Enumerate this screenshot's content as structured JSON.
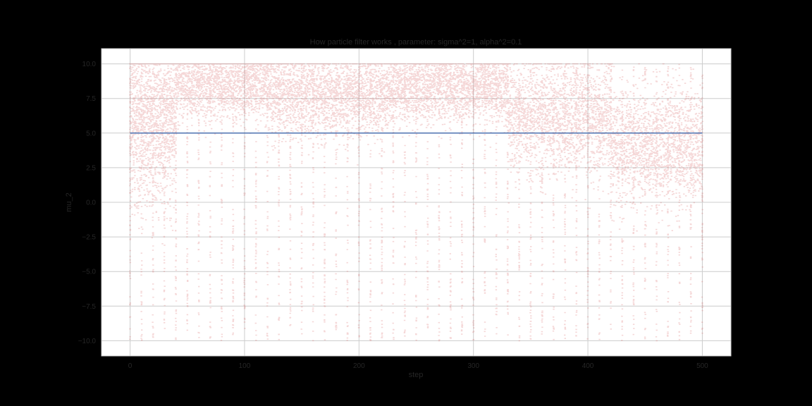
{
  "chart_data": {
    "type": "scatter",
    "title": "How particle filter works , parameter: sigma^2=1, alpha^2=0.1",
    "xlabel": "step",
    "ylabel": "mu_2",
    "xlim": [
      -25,
      525
    ],
    "ylim": [
      -11.1,
      11.1
    ],
    "x_ticks": [
      0,
      100,
      200,
      300,
      400,
      500
    ],
    "y_ticks": [
      -10.0,
      -7.5,
      -5.0,
      -2.5,
      0.0,
      2.5,
      5.0,
      7.5,
      10.0
    ],
    "x_tick_labels": [
      "0",
      "100",
      "200",
      "300",
      "400",
      "500"
    ],
    "y_tick_labels": [
      "−10.0",
      "−7.5",
      "−5.0",
      "−2.5",
      "0.0",
      "2.5",
      "5.0",
      "7.5",
      "10.0"
    ],
    "grid": true,
    "colors": {
      "background": "#000000",
      "plot_area": "#ffffff",
      "grid": "#cccccc",
      "particles": "#d65f5f",
      "true_value": "#4c72b0"
    },
    "series": [
      {
        "type": "scatter",
        "alpha": 0.25,
        "x_range": [
          0,
          500
        ],
        "y_range": [
          -10,
          10
        ],
        "concentration": [
          {
            "x": [
              0,
              40
            ],
            "y_center": 6.0,
            "y_spread": 3.0
          },
          {
            "x": [
              40,
              120
            ],
            "y_center": 8.6,
            "y_spread": 1.3
          },
          {
            "x": [
              120,
              230
            ],
            "y_center": 7.8,
            "y_spread": 1.5
          },
          {
            "x": [
              230,
              330
            ],
            "y_center": 8.4,
            "y_spread": 1.3
          },
          {
            "x": [
              330,
              420
            ],
            "y_center": 6.2,
            "y_spread": 2.0
          },
          {
            "x": [
              420,
              500
            ],
            "y_center": 4.0,
            "y_spread": 2.0
          }
        ]
      },
      {
        "type": "line",
        "x": [
          0,
          500
        ],
        "y": [
          5.0,
          5.0
        ]
      }
    ]
  }
}
